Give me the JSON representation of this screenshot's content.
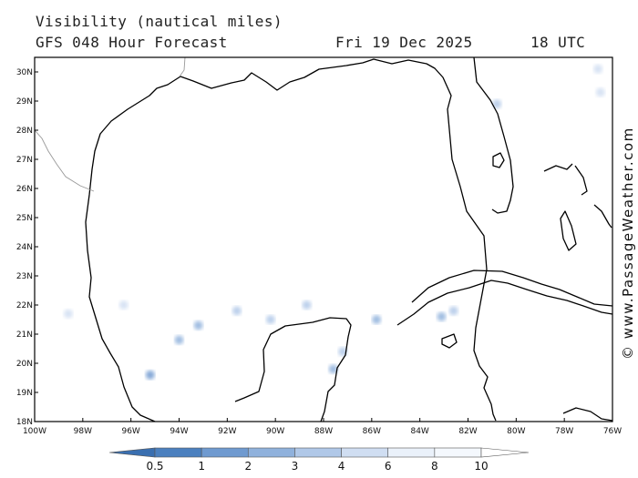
{
  "header": {
    "title": "Visibility (nautical miles)",
    "model": "GFS 048 Hour Forecast",
    "date": "Fri 19 Dec 2025",
    "time": "18 UTC"
  },
  "watermark": "© www.PassageWeather.com",
  "map": {
    "lon_range": [
      -100,
      -76
    ],
    "lat_range": [
      18,
      30.5
    ],
    "lon_labels": [
      "100W",
      "98W",
      "96W",
      "94W",
      "92W",
      "90W",
      "88W",
      "86W",
      "84W",
      "82W",
      "80W",
      "78W",
      "76W"
    ],
    "lat_labels": [
      "18N",
      "19N",
      "20N",
      "21N",
      "22N",
      "23N",
      "24N",
      "25N",
      "26N",
      "27N",
      "28N",
      "29N",
      "30N"
    ],
    "coast_color": "#000000",
    "border_color": "#999999",
    "fog_patches": [
      {
        "lon": -95.2,
        "lat": 19.6,
        "level": 2
      },
      {
        "lon": -94.0,
        "lat": 20.8,
        "level": 3
      },
      {
        "lon": -93.2,
        "lat": 21.3,
        "level": 3
      },
      {
        "lon": -91.6,
        "lat": 21.8,
        "level": 4
      },
      {
        "lon": -90.2,
        "lat": 21.5,
        "level": 4
      },
      {
        "lon": -88.7,
        "lat": 22.0,
        "level": 4
      },
      {
        "lon": -87.6,
        "lat": 19.8,
        "level": 3
      },
      {
        "lon": -87.2,
        "lat": 20.4,
        "level": 4
      },
      {
        "lon": -85.8,
        "lat": 21.5,
        "level": 3
      },
      {
        "lon": -83.1,
        "lat": 21.6,
        "level": 3
      },
      {
        "lon": -82.6,
        "lat": 21.8,
        "level": 4
      },
      {
        "lon": -76.6,
        "lat": 30.1,
        "level": 5
      },
      {
        "lon": -76.5,
        "lat": 29.3,
        "level": 5
      },
      {
        "lon": -80.8,
        "lat": 28.9,
        "level": 4
      },
      {
        "lon": -96.3,
        "lat": 22.0,
        "level": 5
      },
      {
        "lon": -98.6,
        "lat": 21.7,
        "level": 5
      }
    ]
  },
  "colorbar": {
    "labels": [
      "0.5",
      "1",
      "2",
      "3",
      "4",
      "6",
      "8",
      "10"
    ],
    "colors": [
      "#3a6fb0",
      "#4b80bf",
      "#6f9ad0",
      "#8fb1dc",
      "#b0c8e8",
      "#d0def2",
      "#eaf1fa",
      "#ffffff"
    ]
  }
}
